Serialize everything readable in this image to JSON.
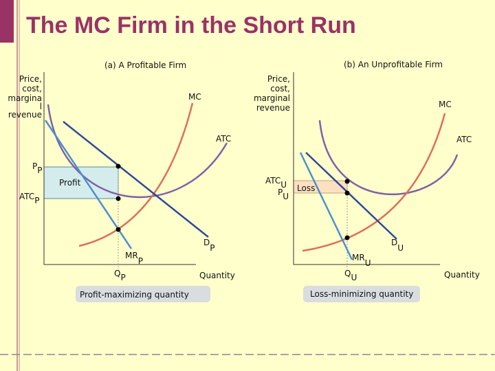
{
  "header": {
    "title": "The MC Firm in the Short Run"
  },
  "panels": [
    {
      "title": "(a) A Profitable Firm",
      "y_axis_label": [
        "Price,",
        "cost,",
        "margina",
        "l",
        "revenue"
      ],
      "x_axis_label": "Quantity",
      "mc": "MC",
      "atc": "ATC",
      "price": {
        "text": "P",
        "sub": "P"
      },
      "atc_level": {
        "text": "ATC",
        "sub": "P"
      },
      "area": "Profit",
      "demand": {
        "text": "D",
        "sub": "P"
      },
      "mr": {
        "text": "MR",
        "sub": "P"
      },
      "quantity": {
        "text": "Q",
        "sub": "P"
      },
      "caption": "Profit-maximizing quantity"
    },
    {
      "title": "(b) An Unprofitable Firm",
      "y_axis_label": [
        "Price,",
        "cost,",
        "marginal",
        "revenue"
      ],
      "x_axis_label": "Quantity",
      "mc": "MC",
      "atc": "ATC",
      "atc_level": {
        "text": "ATC",
        "sub": "U"
      },
      "price": {
        "text": "P",
        "sub": "U"
      },
      "area": "Loss",
      "demand": {
        "text": "D",
        "sub": "U"
      },
      "mr": {
        "text": "MR",
        "sub": "U"
      },
      "quantity": {
        "text": "Q",
        "sub": "U"
      },
      "caption": "Loss-minimizing quantity"
    }
  ]
}
